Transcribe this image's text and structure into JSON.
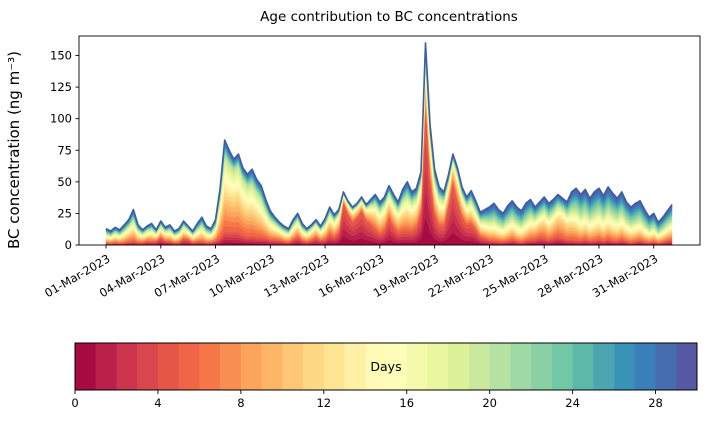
{
  "figure": {
    "title": "Age contribution to BC concentrations",
    "ylabel": "BC concentration (ng m⁻³)",
    "background": "#ffffff"
  },
  "axes": {
    "yticks": [
      0,
      25,
      50,
      75,
      100,
      125,
      150
    ],
    "xtick_days": [
      1,
      4,
      7,
      10,
      13,
      16,
      19,
      22,
      25,
      28,
      31
    ],
    "xtick_labels": [
      "01-Mar-2023",
      "04-Mar-2023",
      "07-Mar-2023",
      "10-Mar-2023",
      "13-Mar-2023",
      "16-Mar-2023",
      "19-Mar-2023",
      "22-Mar-2023",
      "25-Mar-2023",
      "28-Mar-2023",
      "31-Mar-2023"
    ]
  },
  "colorbar": {
    "label": "Days",
    "ticks": [
      0,
      4,
      8,
      12,
      16,
      20,
      24,
      28
    ],
    "min": 0,
    "max": 30,
    "n_segments": 30,
    "colormap": "Spectral",
    "colors": [
      "#9e0142",
      "#d53e4f",
      "#f46d43",
      "#fdae61",
      "#fee08b",
      "#ffffbf",
      "#e6f598",
      "#abdda4",
      "#66c2a5",
      "#3288bd",
      "#5e4fa2"
    ]
  },
  "chart_data": {
    "type": "area",
    "stacked": true,
    "title": "Age contribution to BC concentrations",
    "xlabel": "",
    "ylabel": "BC concentration (ng m-3)",
    "ylim": [
      0,
      165
    ],
    "n_layers": 30,
    "layer_meaning": "air-mass age in days (0 = youngest, bottom, dark red; 29 = oldest, top, blue)",
    "x_unit": "day of March 2023 (1.0 = 01-Mar-2023 00:00)",
    "x_start": 1,
    "x_step": 0.25,
    "top_line_color": "#3d5fa2",
    "total": [
      13,
      11,
      14,
      12,
      16,
      20,
      28,
      16,
      12,
      15,
      17,
      12,
      19,
      14,
      16,
      11,
      13,
      19,
      15,
      11,
      17,
      22,
      15,
      13,
      20,
      45,
      83,
      75,
      68,
      72,
      61,
      56,
      60,
      52,
      47,
      36,
      27,
      22,
      18,
      15,
      13,
      20,
      25,
      17,
      13,
      16,
      20,
      15,
      21,
      30,
      24,
      28,
      42,
      35,
      30,
      33,
      38,
      32,
      36,
      40,
      34,
      38,
      47,
      40,
      34,
      44,
      50,
      42,
      45,
      58,
      160,
      95,
      60,
      46,
      42,
      55,
      72,
      61,
      46,
      38,
      43,
      35,
      26,
      28,
      30,
      33,
      28,
      25,
      31,
      35,
      30,
      27,
      33,
      36,
      30,
      34,
      38,
      33,
      36,
      40,
      37,
      34,
      42,
      45,
      40,
      44,
      37,
      42,
      45,
      39,
      46,
      41,
      37,
      42,
      34,
      30,
      33,
      35,
      28,
      22,
      25,
      18,
      22,
      27,
      32
    ],
    "age_cdf_anchor_ages": [
      0,
      5,
      12,
      20,
      30
    ],
    "cum_frac_age_le_5": [
      0.12,
      0.1,
      0.12,
      0.1,
      0.1,
      0.12,
      0.1,
      0.12,
      0.15,
      0.2,
      0.15,
      0.25,
      0.3,
      0.22,
      0.18,
      0.15,
      0.15,
      0.25,
      0.28,
      0.18,
      0.15,
      0.12,
      0.12,
      0.15,
      0.15,
      0.12,
      0.13,
      0.14,
      0.15,
      0.14,
      0.13,
      0.12,
      0.12,
      0.12,
      0.13,
      0.15,
      0.15,
      0.18,
      0.2,
      0.18,
      0.15,
      0.2,
      0.25,
      0.2,
      0.18,
      0.22,
      0.28,
      0.22,
      0.2,
      0.28,
      0.25,
      0.35,
      0.8,
      0.7,
      0.6,
      0.65,
      0.7,
      0.6,
      0.45,
      0.3,
      0.25,
      0.3,
      0.45,
      0.35,
      0.28,
      0.25,
      0.22,
      0.25,
      0.3,
      0.45,
      0.68,
      0.55,
      0.4,
      0.32,
      0.35,
      0.55,
      0.68,
      0.55,
      0.48,
      0.42,
      0.38,
      0.35,
      0.25,
      0.18,
      0.12,
      0.1,
      0.1,
      0.1,
      0.1,
      0.12,
      0.1,
      0.08,
      0.1,
      0.12,
      0.15,
      0.18,
      0.15,
      0.12,
      0.15,
      0.18,
      0.15,
      0.12,
      0.1,
      0.08,
      0.08,
      0.1,
      0.08,
      0.08,
      0.1,
      0.08,
      0.1,
      0.08,
      0.08,
      0.1,
      0.08,
      0.06,
      0.08,
      0.1,
      0.08,
      0.08,
      0.1,
      0.08,
      0.1,
      0.12,
      0.12
    ],
    "cum_frac_age_le_12": [
      0.4,
      0.38,
      0.42,
      0.4,
      0.4,
      0.45,
      0.42,
      0.42,
      0.45,
      0.48,
      0.45,
      0.5,
      0.55,
      0.5,
      0.45,
      0.42,
      0.45,
      0.52,
      0.55,
      0.45,
      0.42,
      0.4,
      0.4,
      0.42,
      0.45,
      0.5,
      0.52,
      0.52,
      0.55,
      0.55,
      0.52,
      0.5,
      0.48,
      0.48,
      0.45,
      0.45,
      0.45,
      0.48,
      0.5,
      0.45,
      0.45,
      0.5,
      0.55,
      0.48,
      0.48,
      0.55,
      0.6,
      0.52,
      0.5,
      0.6,
      0.55,
      0.65,
      0.9,
      0.85,
      0.8,
      0.82,
      0.85,
      0.8,
      0.7,
      0.6,
      0.55,
      0.6,
      0.7,
      0.62,
      0.58,
      0.55,
      0.52,
      0.55,
      0.58,
      0.68,
      0.82,
      0.75,
      0.65,
      0.58,
      0.6,
      0.75,
      0.85,
      0.78,
      0.72,
      0.65,
      0.6,
      0.58,
      0.5,
      0.42,
      0.35,
      0.32,
      0.32,
      0.32,
      0.32,
      0.35,
      0.32,
      0.3,
      0.32,
      0.38,
      0.45,
      0.5,
      0.48,
      0.42,
      0.48,
      0.55,
      0.55,
      0.48,
      0.4,
      0.35,
      0.3,
      0.32,
      0.3,
      0.3,
      0.32,
      0.3,
      0.32,
      0.3,
      0.3,
      0.32,
      0.3,
      0.28,
      0.3,
      0.32,
      0.3,
      0.3,
      0.32,
      0.3,
      0.32,
      0.35,
      0.35
    ],
    "cum_frac_age_le_20": [
      0.7,
      0.68,
      0.72,
      0.7,
      0.7,
      0.75,
      0.72,
      0.72,
      0.75,
      0.78,
      0.75,
      0.78,
      0.82,
      0.78,
      0.75,
      0.72,
      0.75,
      0.8,
      0.82,
      0.75,
      0.72,
      0.7,
      0.7,
      0.72,
      0.75,
      0.82,
      0.85,
      0.85,
      0.87,
      0.87,
      0.85,
      0.83,
      0.8,
      0.8,
      0.78,
      0.76,
      0.75,
      0.78,
      0.78,
      0.75,
      0.75,
      0.78,
      0.82,
      0.76,
      0.76,
      0.82,
      0.85,
      0.8,
      0.78,
      0.85,
      0.82,
      0.88,
      0.96,
      0.94,
      0.92,
      0.93,
      0.94,
      0.92,
      0.88,
      0.82,
      0.8,
      0.84,
      0.88,
      0.84,
      0.82,
      0.8,
      0.78,
      0.8,
      0.82,
      0.88,
      0.93,
      0.9,
      0.86,
      0.82,
      0.84,
      0.9,
      0.94,
      0.92,
      0.88,
      0.84,
      0.82,
      0.8,
      0.75,
      0.7,
      0.62,
      0.6,
      0.6,
      0.6,
      0.6,
      0.62,
      0.6,
      0.58,
      0.6,
      0.65,
      0.7,
      0.72,
      0.72,
      0.68,
      0.72,
      0.78,
      0.78,
      0.72,
      0.66,
      0.62,
      0.58,
      0.6,
      0.58,
      0.58,
      0.6,
      0.58,
      0.6,
      0.58,
      0.58,
      0.6,
      0.58,
      0.55,
      0.56,
      0.58,
      0.56,
      0.55,
      0.58,
      0.55,
      0.58,
      0.6,
      0.6
    ]
  }
}
